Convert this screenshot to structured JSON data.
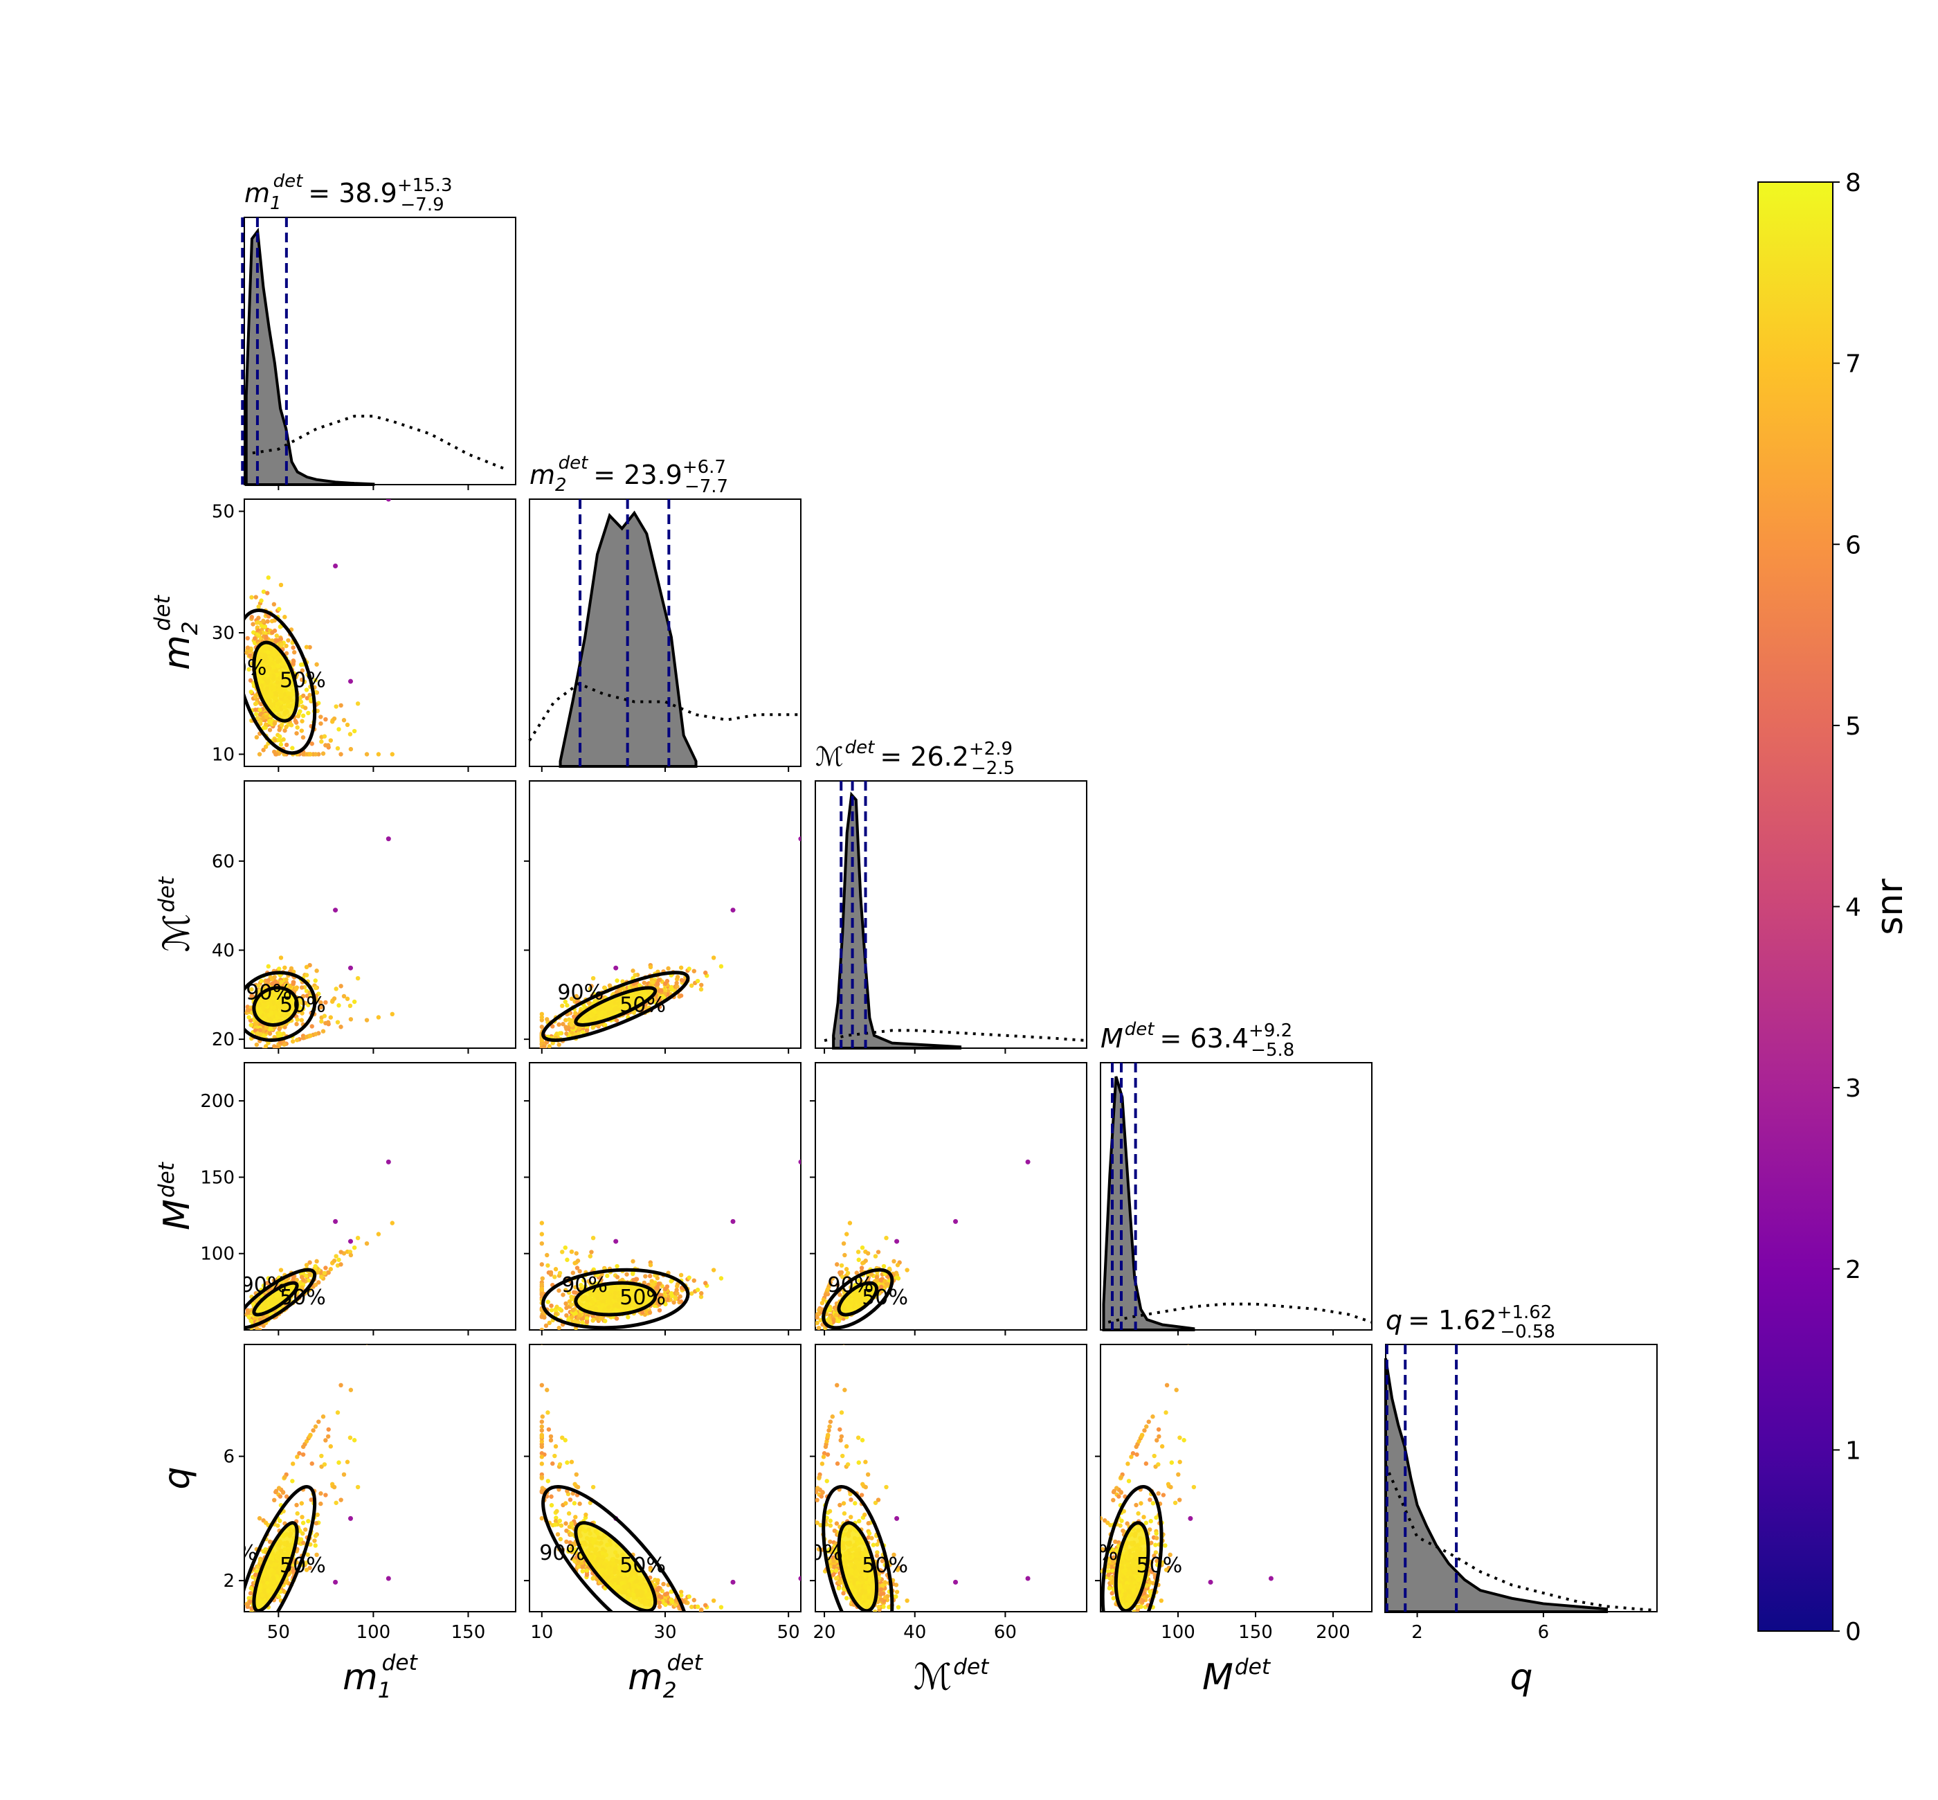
{
  "chart_data": {
    "type": "corner",
    "params": [
      {
        "key": "m1",
        "label": "m",
        "sub": "1",
        "sup": "det",
        "range": [
          32,
          175
        ],
        "ticks": [
          50,
          100,
          150
        ]
      },
      {
        "key": "m2",
        "label": "m",
        "sub": "2",
        "sup": "det",
        "range": [
          8,
          52
        ],
        "ticks": [
          10,
          30,
          50
        ]
      },
      {
        "key": "Mc",
        "label": "ℳ",
        "sub": "",
        "sup": "det",
        "range": [
          18,
          78
        ],
        "ticks": [
          20,
          40,
          60
        ]
      },
      {
        "key": "M",
        "label": "M",
        "sub": "",
        "sup": "det",
        "range": [
          50,
          225
        ],
        "ticks": [
          100,
          150,
          200
        ]
      },
      {
        "key": "q",
        "label": "q",
        "sub": "",
        "sup": "",
        "range": [
          1,
          9.6
        ],
        "ticks": [
          2,
          6
        ]
      }
    ],
    "titles": [
      {
        "lhs": "m",
        "sub": "1",
        "sup": "det",
        "median": "38.9",
        "plus": "+15.3",
        "minus": "−7.9"
      },
      {
        "lhs": "m",
        "sub": "2",
        "sup": "det",
        "median": "23.9",
        "plus": "+6.7",
        "minus": "−7.7"
      },
      {
        "lhs": "ℳ",
        "sub": "",
        "sup": "det",
        "median": "26.2",
        "plus": "+2.9",
        "minus": "−2.5"
      },
      {
        "lhs": "M",
        "sub": "",
        "sup": "det",
        "median": "63.4",
        "plus": "+9.2",
        "minus": "−5.8"
      },
      {
        "lhs": "q",
        "sub": "",
        "sup": "",
        "median": "1.62",
        "plus": "+1.62",
        "minus": "−0.58"
      }
    ],
    "quantiles": {
      "m1": [
        31,
        38.9,
        54.2
      ],
      "m2": [
        16.2,
        23.9,
        30.6
      ],
      "Mc": [
        23.7,
        26.2,
        29.1
      ],
      "M": [
        57.6,
        63.4,
        72.6
      ],
      "q": [
        1.04,
        1.62,
        3.24
      ]
    },
    "posterior_hist": {
      "m1": {
        "x": [
          33,
          36,
          39,
          42,
          45,
          48,
          51,
          54,
          57,
          60,
          65,
          70,
          80,
          90,
          100
        ],
        "y": [
          0.35,
          0.97,
          1.0,
          0.78,
          0.62,
          0.48,
          0.3,
          0.22,
          0.09,
          0.05,
          0.03,
          0.02,
          0.01,
          0.005,
          0.002
        ]
      },
      "m2": {
        "x": [
          13,
          15,
          17,
          19,
          21,
          23,
          25,
          27,
          29,
          31,
          33,
          35
        ],
        "y": [
          0.02,
          0.25,
          0.5,
          0.82,
          0.97,
          0.92,
          0.98,
          0.9,
          0.7,
          0.5,
          0.12,
          0.02
        ]
      },
      "Mc": {
        "x": [
          22,
          23,
          24,
          25,
          26,
          27,
          28,
          29,
          30,
          31,
          35,
          50
        ],
        "y": [
          0.05,
          0.18,
          0.45,
          0.85,
          1.0,
          0.98,
          0.6,
          0.35,
          0.12,
          0.05,
          0.02,
          0.005
        ]
      },
      "M": {
        "x": [
          52,
          56,
          60,
          64,
          68,
          72,
          76,
          80,
          90,
          110
        ],
        "y": [
          0.1,
          0.6,
          0.98,
          0.9,
          0.55,
          0.2,
          0.08,
          0.04,
          0.02,
          0.005
        ]
      },
      "q": {
        "x": [
          1.0,
          1.2,
          1.4,
          1.6,
          1.8,
          2.0,
          2.3,
          2.6,
          3.0,
          3.5,
          4.0,
          5.0,
          6.0,
          8.0
        ],
        "y": [
          0.95,
          0.8,
          0.7,
          0.62,
          0.5,
          0.4,
          0.32,
          0.25,
          0.18,
          0.12,
          0.08,
          0.05,
          0.03,
          0.01
        ]
      }
    },
    "prior_hist": {
      "m1": {
        "x": [
          32,
          50,
          70,
          90,
          100,
          110,
          130,
          150,
          170
        ],
        "y": [
          0.12,
          0.14,
          0.22,
          0.27,
          0.27,
          0.25,
          0.2,
          0.12,
          0.06
        ]
      },
      "m2": {
        "x": [
          8,
          12,
          16,
          20,
          25,
          30,
          35,
          40,
          45,
          52
        ],
        "y": [
          0.1,
          0.25,
          0.32,
          0.28,
          0.25,
          0.25,
          0.2,
          0.18,
          0.2,
          0.2
        ]
      },
      "Mc": {
        "x": [
          20,
          25,
          30,
          35,
          40,
          50,
          60,
          70,
          78
        ],
        "y": [
          0.03,
          0.05,
          0.06,
          0.07,
          0.07,
          0.06,
          0.05,
          0.04,
          0.03
        ]
      },
      "M": {
        "x": [
          55,
          70,
          90,
          110,
          130,
          150,
          170,
          190,
          210,
          225
        ],
        "y": [
          0.03,
          0.05,
          0.07,
          0.09,
          0.1,
          0.1,
          0.09,
          0.08,
          0.06,
          0.03
        ]
      },
      "q": {
        "x": [
          1,
          2,
          3,
          4,
          5,
          6,
          7,
          8,
          9,
          9.6
        ],
        "y": [
          0.55,
          0.28,
          0.22,
          0.15,
          0.1,
          0.07,
          0.04,
          0.02,
          0.01,
          0.005
        ]
      }
    },
    "contour_levels": [
      "50%",
      "90%"
    ],
    "colorbar": {
      "label": "snr",
      "min": 0,
      "max": 8,
      "ticks": [
        0,
        1,
        2,
        3,
        4,
        5,
        6,
        7,
        8
      ],
      "colormap": "plasma"
    },
    "colors": {
      "histogram_fill": "#808080",
      "quantile_line": "#00007f",
      "axes": "#000000"
    }
  }
}
